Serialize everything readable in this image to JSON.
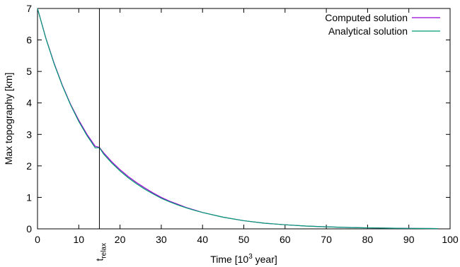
{
  "chart_data": {
    "type": "line",
    "xlabel": {
      "prefix": "Time [10",
      "superscript": "3",
      "suffix": " year]"
    },
    "ylabel": "Max topography [km]",
    "xlim": [
      0,
      100
    ],
    "ylim": [
      0,
      7
    ],
    "xticks": [
      0,
      10,
      20,
      30,
      40,
      50,
      60,
      70,
      80,
      90,
      100
    ],
    "yticks": [
      0,
      1,
      2,
      3,
      4,
      5,
      6,
      7
    ],
    "grid": false,
    "legend_position": "top-right",
    "series": [
      {
        "name": "Computed solution",
        "color": "#9400d3",
        "x": [
          0,
          2,
          4,
          6,
          8,
          10,
          12,
          14,
          15,
          16,
          18,
          20,
          22,
          24,
          26,
          28,
          30,
          32,
          34,
          36,
          38,
          40,
          45,
          50,
          55,
          60,
          65,
          70,
          75,
          80,
          85,
          90,
          95,
          97
        ],
        "y": [
          7.0,
          6.07,
          5.27,
          4.57,
          3.96,
          3.45,
          3.0,
          2.62,
          2.59,
          2.42,
          2.13,
          1.88,
          1.66,
          1.47,
          1.3,
          1.14,
          1.0,
          0.88,
          0.78,
          0.68,
          0.6,
          0.52,
          0.37,
          0.26,
          0.18,
          0.13,
          0.09,
          0.065,
          0.045,
          0.032,
          0.022,
          0.016,
          0.011,
          0.01
        ]
      },
      {
        "name": "Analytical solution",
        "color": "#009e73",
        "x": [
          0,
          2,
          4,
          6,
          8,
          10,
          12,
          14,
          15,
          16,
          18,
          20,
          22,
          24,
          26,
          28,
          30,
          32,
          34,
          36,
          38,
          40,
          45,
          50,
          55,
          60,
          65,
          70,
          75,
          80,
          85,
          90,
          95,
          97
        ],
        "y": [
          7.0,
          6.06,
          5.25,
          4.55,
          3.94,
          3.41,
          2.96,
          2.57,
          2.58,
          2.38,
          2.09,
          1.84,
          1.62,
          1.43,
          1.26,
          1.11,
          0.97,
          0.86,
          0.76,
          0.67,
          0.59,
          0.52,
          0.37,
          0.26,
          0.18,
          0.13,
          0.09,
          0.064,
          0.045,
          0.032,
          0.022,
          0.016,
          0.011,
          0.01
        ]
      }
    ],
    "annotations": [
      {
        "type": "vline",
        "x": 15,
        "color": "#000000",
        "label": {
          "base": "t",
          "subscript": "relax"
        }
      }
    ]
  }
}
